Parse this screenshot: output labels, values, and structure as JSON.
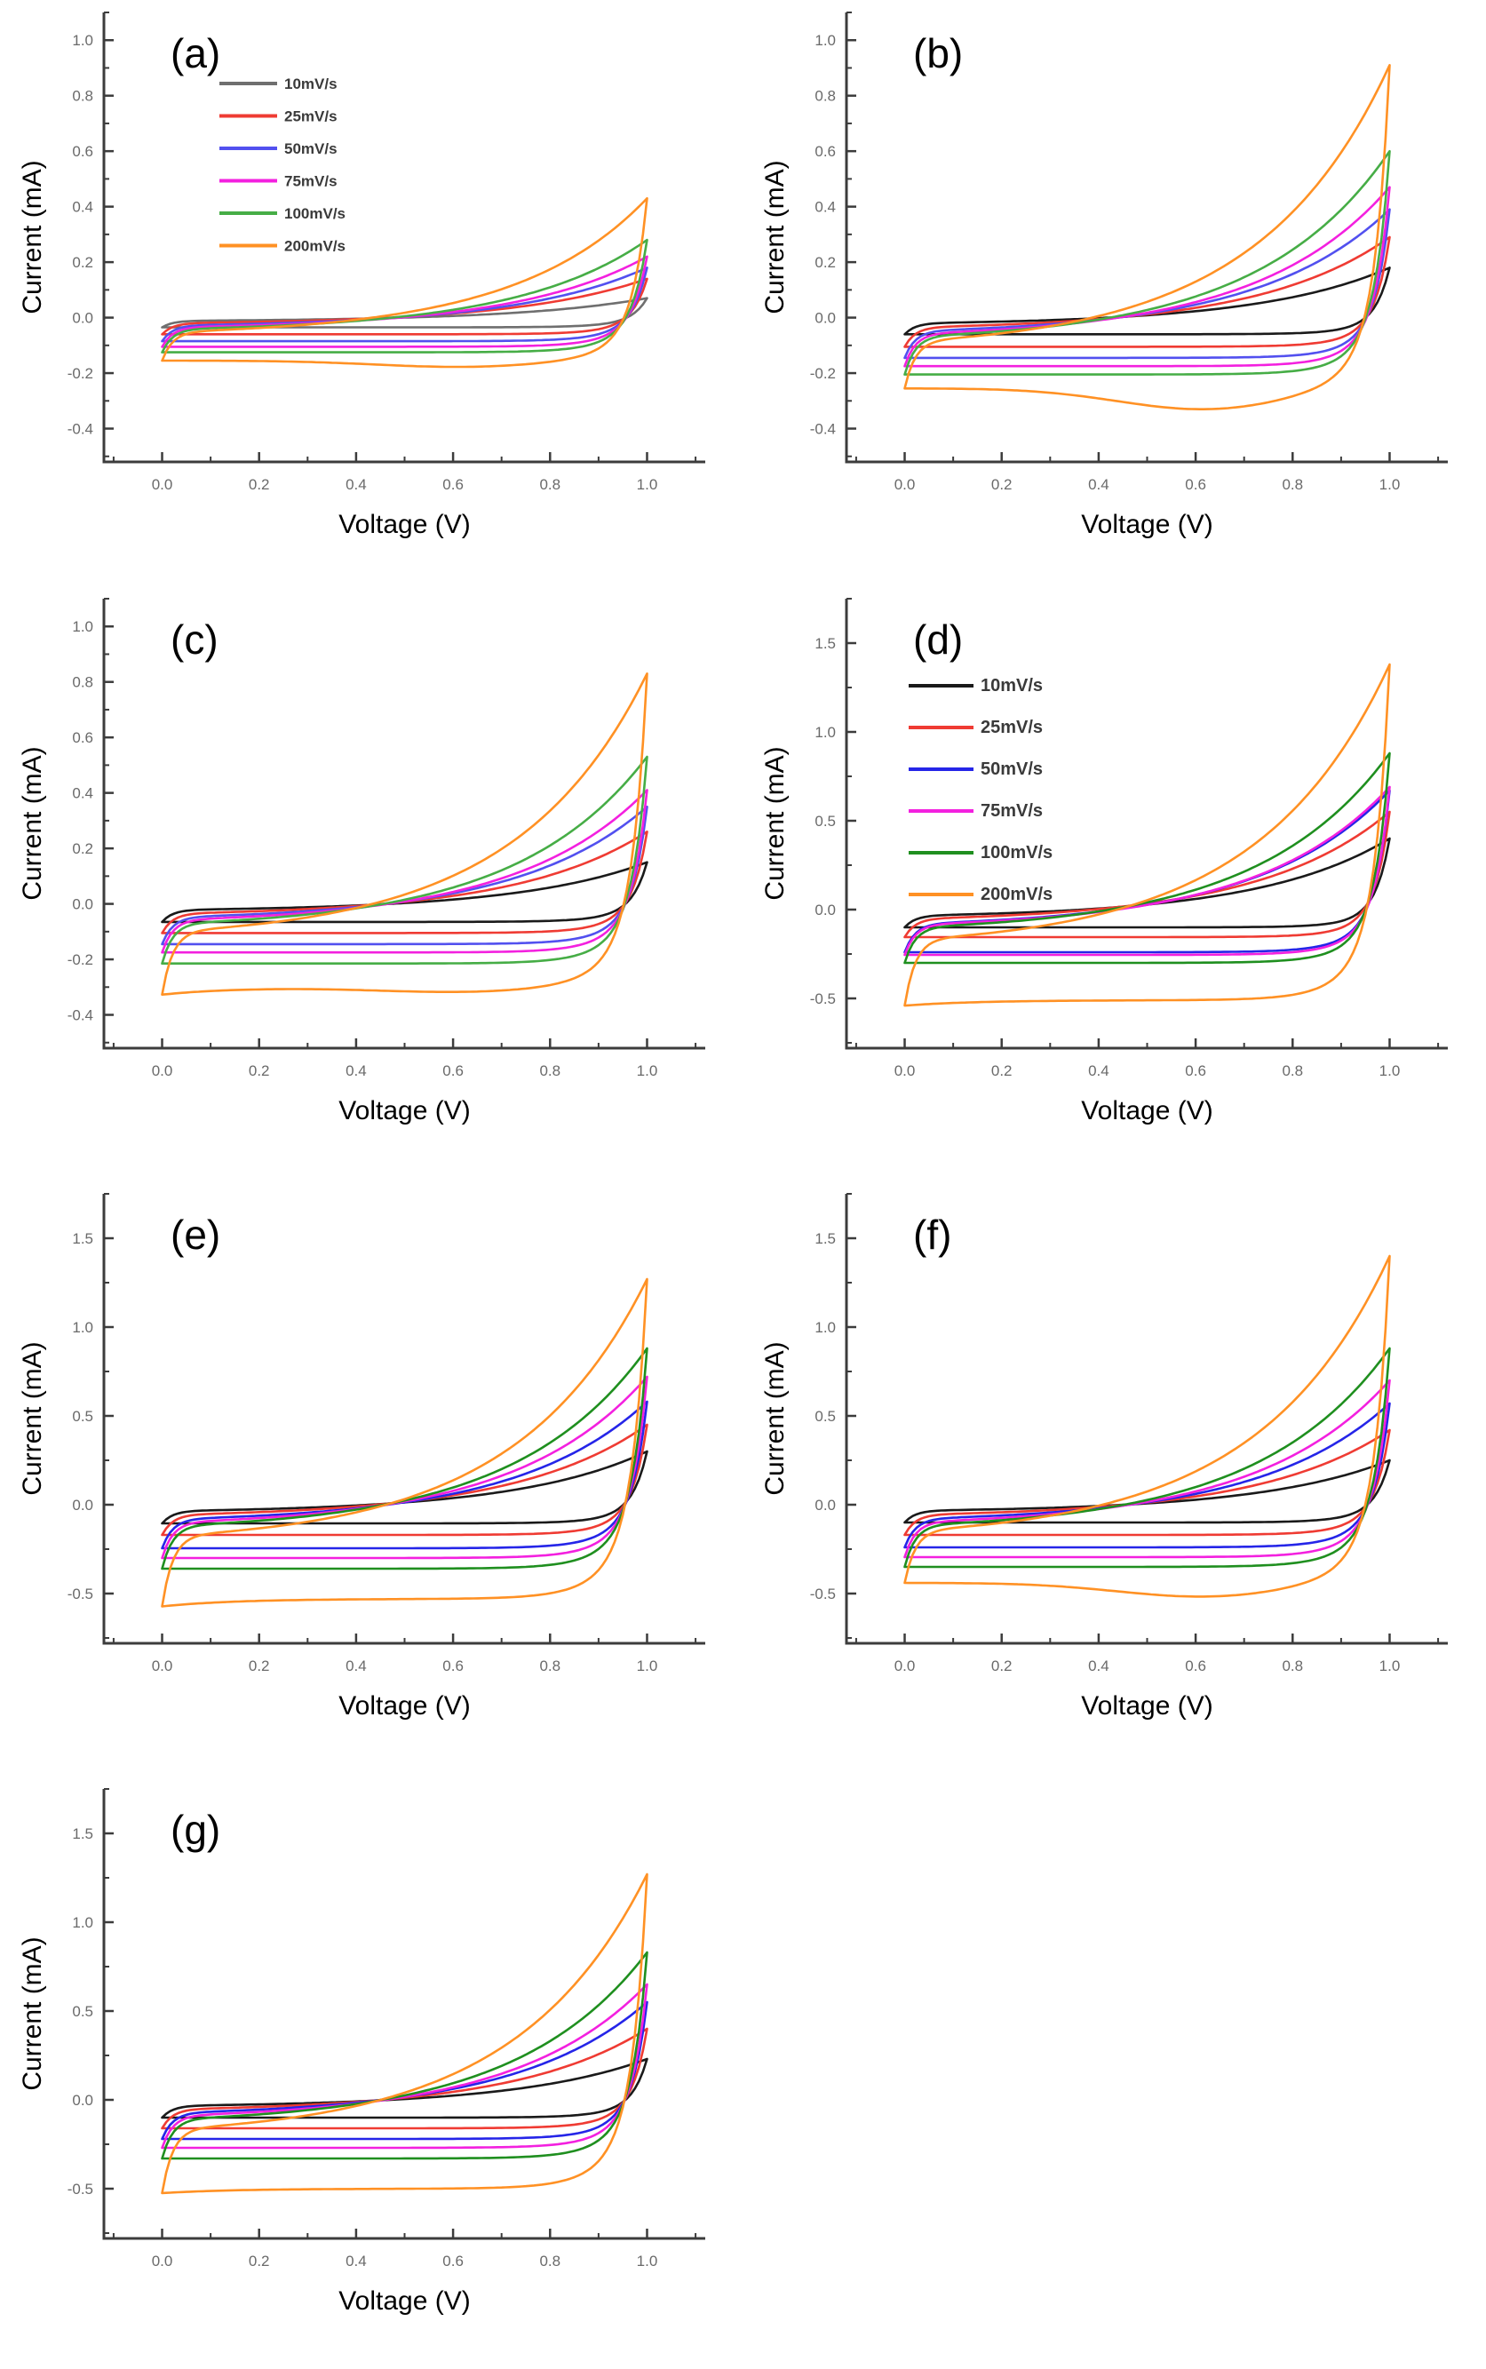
{
  "figure": {
    "name": "cyclic-voltammetry-figure",
    "xlabel": "Voltage (V)",
    "ylabel": "Current (mA)",
    "legend_labels": [
      "10mV/s",
      "25mV/s",
      "50mV/s",
      "75mV/s",
      "100mV/s",
      "200mV/s"
    ]
  },
  "chart_data": [
    {
      "type": "line",
      "panel_label": "(a)",
      "xlabel": "Voltage (V)",
      "ylabel": "Current (mA)",
      "xlim": [
        -0.12,
        1.12
      ],
      "ylim": [
        -0.52,
        1.1
      ],
      "x_ticks": [
        "0.0",
        "0.2",
        "0.4",
        "0.6",
        "0.8",
        "1.0"
      ],
      "y_ticks": [
        "-0.4",
        "-0.2",
        "0.0",
        "0.2",
        "0.4",
        "0.6",
        "0.8",
        "1.0"
      ],
      "y_minor_step": 0.1,
      "legend_visible": true,
      "legend_position": "upper-left",
      "grid": false,
      "series": [
        {
          "name": "10mV/s",
          "color": "#6f6f6f",
          "i_anodic_max_mA": 0.07,
          "i_cathodic_plateau_mA": -0.035,
          "dip_left": 0,
          "dip_mid": 0
        },
        {
          "name": "25mV/s",
          "color": "#ef3b33",
          "i_anodic_max_mA": 0.14,
          "i_cathodic_plateau_mA": -0.06,
          "dip_left": 0,
          "dip_mid": 0
        },
        {
          "name": "50mV/s",
          "color": "#5250ef",
          "i_anodic_max_mA": 0.18,
          "i_cathodic_plateau_mA": -0.085,
          "dip_left": 0,
          "dip_mid": 0
        },
        {
          "name": "75mV/s",
          "color": "#f320df",
          "i_anodic_max_mA": 0.22,
          "i_cathodic_plateau_mA": -0.105,
          "dip_left": 0,
          "dip_mid": 0
        },
        {
          "name": "100mV/s",
          "color": "#46ad46",
          "i_anodic_max_mA": 0.28,
          "i_cathodic_plateau_mA": -0.125,
          "dip_left": 0,
          "dip_mid": 0
        },
        {
          "name": "200mV/s",
          "color": "#ff9124",
          "i_anodic_max_mA": 0.43,
          "i_cathodic_plateau_mA": -0.155,
          "dip_left": 0,
          "dip_mid": 0.15
        }
      ]
    },
    {
      "type": "line",
      "panel_label": "(b)",
      "xlabel": "Voltage (V)",
      "ylabel": "Current (mA)",
      "xlim": [
        -0.12,
        1.12
      ],
      "ylim": [
        -0.52,
        1.1
      ],
      "x_ticks": [
        "0.0",
        "0.2",
        "0.4",
        "0.6",
        "0.8",
        "1.0"
      ],
      "y_ticks": [
        "-0.4",
        "-0.2",
        "0.0",
        "0.2",
        "0.4",
        "0.6",
        "0.8",
        "1.0"
      ],
      "y_minor_step": 0.1,
      "legend_visible": false,
      "grid": false,
      "series": [
        {
          "name": "10mV/s",
          "color": "#1a1a1a",
          "i_anodic_max_mA": 0.18,
          "i_cathodic_plateau_mA": -0.06,
          "dip_left": 0,
          "dip_mid": 0
        },
        {
          "name": "25mV/s",
          "color": "#ef3b33",
          "i_anodic_max_mA": 0.29,
          "i_cathodic_plateau_mA": -0.105,
          "dip_left": 0,
          "dip_mid": 0
        },
        {
          "name": "50mV/s",
          "color": "#5250ef",
          "i_anodic_max_mA": 0.39,
          "i_cathodic_plateau_mA": -0.145,
          "dip_left": 0,
          "dip_mid": 0
        },
        {
          "name": "75mV/s",
          "color": "#f320df",
          "i_anodic_max_mA": 0.47,
          "i_cathodic_plateau_mA": -0.175,
          "dip_left": 0,
          "dip_mid": 0
        },
        {
          "name": "100mV/s",
          "color": "#46ad46",
          "i_anodic_max_mA": 0.6,
          "i_cathodic_plateau_mA": -0.205,
          "dip_left": 0,
          "dip_mid": 0
        },
        {
          "name": "200mV/s",
          "color": "#ff9124",
          "i_anodic_max_mA": 0.91,
          "i_cathodic_plateau_mA": -0.255,
          "dip_left": 0,
          "dip_mid": 0.3
        }
      ]
    },
    {
      "type": "line",
      "panel_label": "(c)",
      "xlabel": "Voltage (V)",
      "ylabel": "Current (mA)",
      "xlim": [
        -0.12,
        1.12
      ],
      "ylim": [
        -0.52,
        1.1
      ],
      "x_ticks": [
        "0.0",
        "0.2",
        "0.4",
        "0.6",
        "0.8",
        "1.0"
      ],
      "y_ticks": [
        "-0.4",
        "-0.2",
        "0.0",
        "0.2",
        "0.4",
        "0.6",
        "0.8",
        "1.0"
      ],
      "y_minor_step": 0.1,
      "legend_visible": false,
      "grid": false,
      "series": [
        {
          "name": "10mV/s",
          "color": "#1a1a1a",
          "i_anodic_max_mA": 0.15,
          "i_cathodic_plateau_mA": -0.065,
          "dip_left": 0,
          "dip_mid": 0
        },
        {
          "name": "25mV/s",
          "color": "#ef3b33",
          "i_anodic_max_mA": 0.26,
          "i_cathodic_plateau_mA": -0.105,
          "dip_left": 0,
          "dip_mid": 0
        },
        {
          "name": "50mV/s",
          "color": "#5250ef",
          "i_anodic_max_mA": 0.35,
          "i_cathodic_plateau_mA": -0.145,
          "dip_left": 0,
          "dip_mid": 0
        },
        {
          "name": "75mV/s",
          "color": "#f320df",
          "i_anodic_max_mA": 0.41,
          "i_cathodic_plateau_mA": -0.175,
          "dip_left": 0,
          "dip_mid": 0
        },
        {
          "name": "100mV/s",
          "color": "#46ad46",
          "i_anodic_max_mA": 0.53,
          "i_cathodic_plateau_mA": -0.215,
          "dip_left": 0,
          "dip_mid": 0
        },
        {
          "name": "200mV/s",
          "color": "#ff9124",
          "i_anodic_max_mA": 0.83,
          "i_cathodic_plateau_mA": -0.3,
          "dip_left": 0.09,
          "dip_mid": 0.06
        }
      ]
    },
    {
      "type": "line",
      "panel_label": "(d)",
      "xlabel": "Voltage (V)",
      "ylabel": "Current (mA)",
      "xlim": [
        -0.12,
        1.12
      ],
      "ylim": [
        -0.78,
        1.75
      ],
      "x_ticks": [
        "0.0",
        "0.2",
        "0.4",
        "0.6",
        "0.8",
        "1.0"
      ],
      "y_ticks": [
        "-0.5",
        "0.0",
        "0.5",
        "1.0",
        "1.5"
      ],
      "y_minor_step": 0.25,
      "legend_visible": true,
      "legend_position": "upper-left",
      "grid": false,
      "series": [
        {
          "name": "10mV/s",
          "color": "#1a1a1a",
          "i_anodic_max_mA": 0.4,
          "i_cathodic_plateau_mA": -0.1,
          "dip_left": 0,
          "dip_mid": 0
        },
        {
          "name": "25mV/s",
          "color": "#ef3b33",
          "i_anodic_max_mA": 0.55,
          "i_cathodic_plateau_mA": -0.155,
          "dip_left": 0,
          "dip_mid": 0
        },
        {
          "name": "50mV/s",
          "color": "#2525e8",
          "i_anodic_max_mA": 0.67,
          "i_cathodic_plateau_mA": -0.24,
          "dip_left": 0,
          "dip_mid": 0
        },
        {
          "name": "75mV/s",
          "color": "#f320df",
          "i_anodic_max_mA": 0.69,
          "i_cathodic_plateau_mA": -0.255,
          "dip_left": 0,
          "dip_mid": 0
        },
        {
          "name": "100mV/s",
          "color": "#1f8f1f",
          "i_anodic_max_mA": 0.88,
          "i_cathodic_plateau_mA": -0.3,
          "dip_left": 0,
          "dip_mid": 0
        },
        {
          "name": "200mV/s",
          "color": "#ff9124",
          "i_anodic_max_mA": 1.38,
          "i_cathodic_plateau_mA": -0.51,
          "dip_left": 0.06,
          "dip_mid": 0
        }
      ]
    },
    {
      "type": "line",
      "panel_label": "(e)",
      "xlabel": "Voltage (V)",
      "ylabel": "Current (mA)",
      "xlim": [
        -0.12,
        1.12
      ],
      "ylim": [
        -0.78,
        1.75
      ],
      "x_ticks": [
        "0.0",
        "0.2",
        "0.4",
        "0.6",
        "0.8",
        "1.0"
      ],
      "y_ticks": [
        "-0.5",
        "0.0",
        "0.5",
        "1.0",
        "1.5"
      ],
      "y_minor_step": 0.25,
      "legend_visible": false,
      "grid": false,
      "series": [
        {
          "name": "10mV/s",
          "color": "#1a1a1a",
          "i_anodic_max_mA": 0.3,
          "i_cathodic_plateau_mA": -0.105,
          "dip_left": 0,
          "dip_mid": 0
        },
        {
          "name": "25mV/s",
          "color": "#ef3b33",
          "i_anodic_max_mA": 0.45,
          "i_cathodic_plateau_mA": -0.17,
          "dip_left": 0,
          "dip_mid": 0
        },
        {
          "name": "50mV/s",
          "color": "#2525e8",
          "i_anodic_max_mA": 0.58,
          "i_cathodic_plateau_mA": -0.245,
          "dip_left": 0,
          "dip_mid": 0
        },
        {
          "name": "75mV/s",
          "color": "#f320df",
          "i_anodic_max_mA": 0.72,
          "i_cathodic_plateau_mA": -0.3,
          "dip_left": 0,
          "dip_mid": 0
        },
        {
          "name": "100mV/s",
          "color": "#1f8f1f",
          "i_anodic_max_mA": 0.88,
          "i_cathodic_plateau_mA": -0.36,
          "dip_left": 0,
          "dip_mid": 0
        },
        {
          "name": "200mV/s",
          "color": "#ff9124",
          "i_anodic_max_mA": 1.27,
          "i_cathodic_plateau_mA": -0.53,
          "dip_left": 0.08,
          "dip_mid": 0
        }
      ]
    },
    {
      "type": "line",
      "panel_label": "(f)",
      "xlabel": "Voltage (V)",
      "ylabel": "Current (mA)",
      "xlim": [
        -0.12,
        1.12
      ],
      "ylim": [
        -0.78,
        1.75
      ],
      "x_ticks": [
        "0.0",
        "0.2",
        "0.4",
        "0.6",
        "0.8",
        "1.0"
      ],
      "y_ticks": [
        "-0.5",
        "0.0",
        "0.5",
        "1.0",
        "1.5"
      ],
      "y_minor_step": 0.25,
      "legend_visible": false,
      "grid": false,
      "series": [
        {
          "name": "10mV/s",
          "color": "#1a1a1a",
          "i_anodic_max_mA": 0.25,
          "i_cathodic_plateau_mA": -0.1,
          "dip_left": 0,
          "dip_mid": 0
        },
        {
          "name": "25mV/s",
          "color": "#ef3b33",
          "i_anodic_max_mA": 0.42,
          "i_cathodic_plateau_mA": -0.17,
          "dip_left": 0,
          "dip_mid": 0
        },
        {
          "name": "50mV/s",
          "color": "#2525e8",
          "i_anodic_max_mA": 0.57,
          "i_cathodic_plateau_mA": -0.24,
          "dip_left": 0,
          "dip_mid": 0
        },
        {
          "name": "75mV/s",
          "color": "#f320df",
          "i_anodic_max_mA": 0.7,
          "i_cathodic_plateau_mA": -0.295,
          "dip_left": 0,
          "dip_mid": 0
        },
        {
          "name": "100mV/s",
          "color": "#1f8f1f",
          "i_anodic_max_mA": 0.88,
          "i_cathodic_plateau_mA": -0.35,
          "dip_left": 0,
          "dip_mid": 0
        },
        {
          "name": "200mV/s",
          "color": "#ff9124",
          "i_anodic_max_mA": 1.4,
          "i_cathodic_plateau_mA": -0.44,
          "dip_left": 0,
          "dip_mid": 0.18
        }
      ]
    },
    {
      "type": "line",
      "panel_label": "(g)",
      "xlabel": "Voltage (V)",
      "ylabel": "Current (mA)",
      "xlim": [
        -0.12,
        1.12
      ],
      "ylim": [
        -0.78,
        1.75
      ],
      "x_ticks": [
        "0.0",
        "0.2",
        "0.4",
        "0.6",
        "0.8",
        "1.0"
      ],
      "y_ticks": [
        "-0.5",
        "0.0",
        "0.5",
        "1.0",
        "1.5"
      ],
      "y_minor_step": 0.25,
      "legend_visible": false,
      "grid": false,
      "series": [
        {
          "name": "10mV/s",
          "color": "#1a1a1a",
          "i_anodic_max_mA": 0.23,
          "i_cathodic_plateau_mA": -0.1,
          "dip_left": 0,
          "dip_mid": 0
        },
        {
          "name": "25mV/s",
          "color": "#ef3b33",
          "i_anodic_max_mA": 0.4,
          "i_cathodic_plateau_mA": -0.16,
          "dip_left": 0,
          "dip_mid": 0
        },
        {
          "name": "50mV/s",
          "color": "#2525e8",
          "i_anodic_max_mA": 0.55,
          "i_cathodic_plateau_mA": -0.22,
          "dip_left": 0,
          "dip_mid": 0
        },
        {
          "name": "75mV/s",
          "color": "#f320df",
          "i_anodic_max_mA": 0.65,
          "i_cathodic_plateau_mA": -0.27,
          "dip_left": 0,
          "dip_mid": 0
        },
        {
          "name": "100mV/s",
          "color": "#1f8f1f",
          "i_anodic_max_mA": 0.83,
          "i_cathodic_plateau_mA": -0.33,
          "dip_left": 0,
          "dip_mid": 0
        },
        {
          "name": "200mV/s",
          "color": "#ff9124",
          "i_anodic_max_mA": 1.27,
          "i_cathodic_plateau_mA": -0.5,
          "dip_left": 0.05,
          "dip_mid": 0
        }
      ]
    }
  ],
  "style": {
    "axis_color": "#3c3c3c",
    "tick_label_color": "#6a6a6a",
    "axis_title_color": "#000000",
    "panel_letter_color": "#000000",
    "legend_text_color": "#3a3a3a"
  }
}
